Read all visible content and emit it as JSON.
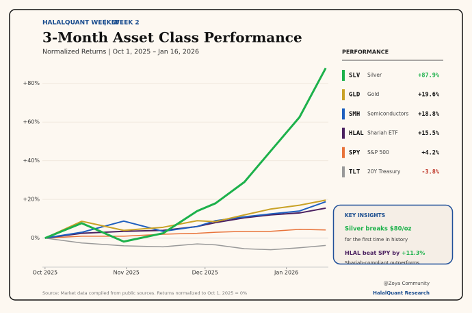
{
  "header": {
    "kicker": "HALALQUANT WEEKLY",
    "week": "WEEK 2",
    "title": "3-Month Asset Class Performance",
    "subtitle": "Normalized Returns | Oct 1, 2025 – Jan 16, 2026"
  },
  "chart_data": {
    "type": "line",
    "x": [
      0,
      14,
      30,
      45,
      58,
      65,
      76,
      86,
      97,
      107
    ],
    "xlim": [
      -1,
      108
    ],
    "xticks": [
      {
        "value": 0,
        "label": "Oct 2025"
      },
      {
        "value": 31,
        "label": "Nov 2025"
      },
      {
        "value": 61,
        "label": "Dec 2025"
      },
      {
        "value": 92,
        "label": "Jan 2026"
      }
    ],
    "ylim": [
      -15,
      93
    ],
    "yticks": [
      {
        "value": 0,
        "label": "0%"
      },
      {
        "value": 20,
        "label": "+20%"
      },
      {
        "value": 40,
        "label": "+40%"
      },
      {
        "value": 60,
        "label": "+60%"
      },
      {
        "value": 80,
        "label": "+80%"
      }
    ],
    "grid": true,
    "series": [
      {
        "name": "SLV",
        "color": "#1db14b",
        "width": 3,
        "values": [
          0,
          7.7,
          -1.8,
          2.5,
          14,
          18,
          29,
          45,
          62.5,
          87.9
        ]
      },
      {
        "name": "GLD",
        "color": "#c9a227",
        "width": 2,
        "values": [
          0,
          8.7,
          4,
          5.6,
          9,
          8.5,
          12,
          15,
          17,
          19.6
        ]
      },
      {
        "name": "SMH",
        "color": "#1f5fbf",
        "width": 2,
        "values": [
          0,
          3,
          8.8,
          3.5,
          6,
          9,
          11,
          12.5,
          14,
          18.8
        ]
      },
      {
        "name": "HLAL",
        "color": "#4b2160",
        "width": 2,
        "values": [
          0,
          2.5,
          3.5,
          4,
          6,
          8,
          10.5,
          12,
          13,
          15.5
        ]
      },
      {
        "name": "SPY",
        "color": "#e8733a",
        "width": 1.5,
        "values": [
          0,
          1,
          1,
          2,
          2.5,
          3,
          3.5,
          3.5,
          4.5,
          4.2
        ]
      },
      {
        "name": "TLT",
        "color": "#999999",
        "width": 1.5,
        "values": [
          0,
          -2.5,
          -4,
          -4.5,
          -3,
          -3.5,
          -5.5,
          -6,
          -5,
          -3.8
        ]
      }
    ]
  },
  "performance": {
    "title": "PERFORMANCE",
    "items": [
      {
        "name": "Silver",
        "change": "+87.9%",
        "color": "#1db14b"
      },
      {
        "name": "Gold",
        "change": "+19.6%",
        "color": "#111111"
      },
      {
        "name": "Semiconductors",
        "change": "+18.8%",
        "color": "#111111"
      },
      {
        "name": "Shariah ETF",
        "change": "+15.5%",
        "color": "#111111"
      },
      {
        "name": "S&P 500",
        "change": "+4.2%",
        "color": "#111111"
      },
      {
        "name": "20Y Treasury",
        "change": "-3.8%",
        "color": "#c0392b"
      }
    ]
  },
  "insights": {
    "title": "KEY INSIGHTS",
    "headline1": "Silver breaks $80/oz",
    "detail1": "for the first time in history",
    "headline2": "HLAL beat SPY by",
    "highlight2": "+11.3%",
    "detail2": "Shariah-compliant outperforms"
  },
  "footer": {
    "source": "Source: Market data compiled from public sources. Returns normalized to Oct 1, 2025 = 0%",
    "credit": "@Zoya Community",
    "brand": "HalalQuant Research"
  }
}
